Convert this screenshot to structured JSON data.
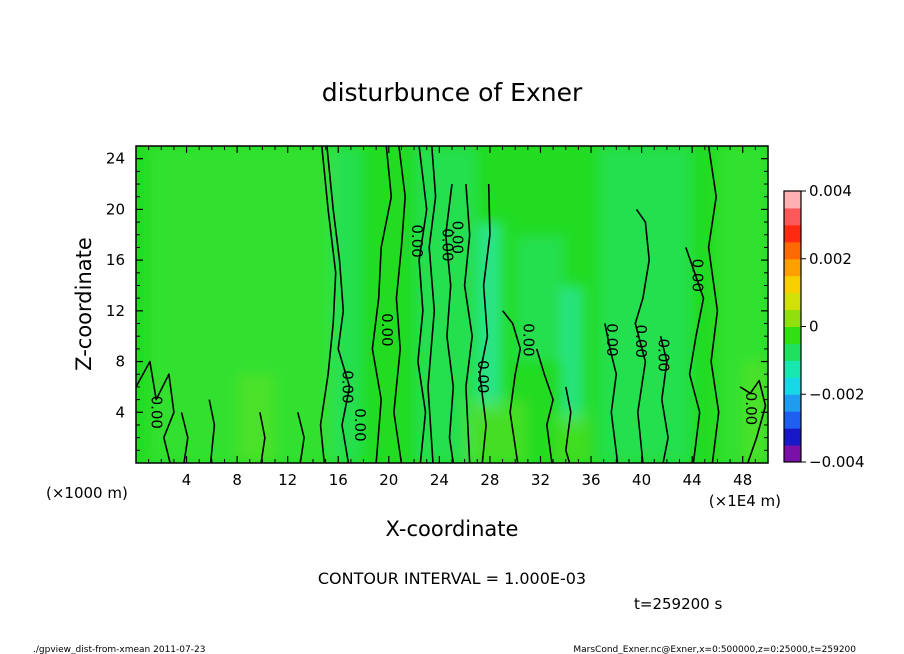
{
  "chart_data": {
    "type": "heatmap",
    "title": "disturbunce of Exner",
    "xlabel": "X-coordinate",
    "ylabel": "Z-coordinate",
    "xunit": "(×1000 m)",
    "xunit_right": "(×1E4 m)",
    "xlim": [
      0,
      50
    ],
    "ylim": [
      0,
      25
    ],
    "x_ticks": [
      4,
      8,
      12,
      16,
      20,
      24,
      28,
      32,
      36,
      40,
      44,
      48
    ],
    "y_ticks": [
      4,
      8,
      12,
      16,
      20,
      24
    ],
    "contour_interval_text": "CONTOUR INTERVAL = 1.000E-03",
    "time_text": "t=259200 s",
    "contour_labels": [
      {
        "text": "0.00",
        "x": 1.6,
        "y": 4.0
      },
      {
        "text": "0.00",
        "x": 16.7,
        "y": 6.0
      },
      {
        "text": "0.00",
        "x": 17.7,
        "y": 3.0
      },
      {
        "text": "0.00",
        "x": 19.8,
        "y": 10.5
      },
      {
        "text": "0.00",
        "x": 22.2,
        "y": 17.5
      },
      {
        "text": "0.00",
        "x": 24.6,
        "y": 17.2
      },
      {
        "text": "0.00",
        "x": 25.4,
        "y": 17.8
      },
      {
        "text": "0.00",
        "x": 27.4,
        "y": 6.8
      },
      {
        "text": "0.00",
        "x": 31.0,
        "y": 9.7
      },
      {
        "text": "0.00",
        "x": 37.6,
        "y": 9.7
      },
      {
        "text": "0.00",
        "x": 39.9,
        "y": 9.6
      },
      {
        "text": "0.00",
        "x": 41.7,
        "y": 8.5
      },
      {
        "text": "0.00",
        "x": 44.4,
        "y": 14.8
      },
      {
        "text": "0.00",
        "x": 48.6,
        "y": 4.3
      }
    ],
    "colorbar": {
      "range": [
        -0.004,
        0.004
      ],
      "tick_labels": [
        "0.004",
        "0.002",
        "0",
        "−0.002",
        "−0.004"
      ],
      "tick_values": [
        0.004,
        0.002,
        0,
        -0.002,
        -0.004
      ],
      "colors": [
        "#7a10a8",
        "#1818c8",
        "#1e5ef0",
        "#1e9cf0",
        "#18d8e8",
        "#18e8b0",
        "#20e060",
        "#30e010",
        "#90e010",
        "#d0e008",
        "#f8d000",
        "#ffa000",
        "#ff6a00",
        "#ff2a10",
        "#ff5858",
        "#ffb0b0"
      ]
    },
    "colors": {
      "background_field": "#22dc22",
      "field_light": "#3ee63a",
      "field_cyan": "#2ae6a0",
      "field_yellow": "#7ae020",
      "contour": "#000000"
    }
  },
  "footer": {
    "left": "./gpview_dist-from-xmean   2011-07-23",
    "right": "MarsCond_Exner.nc@Exner,x=0:500000,z=0:25000,t=259200"
  }
}
